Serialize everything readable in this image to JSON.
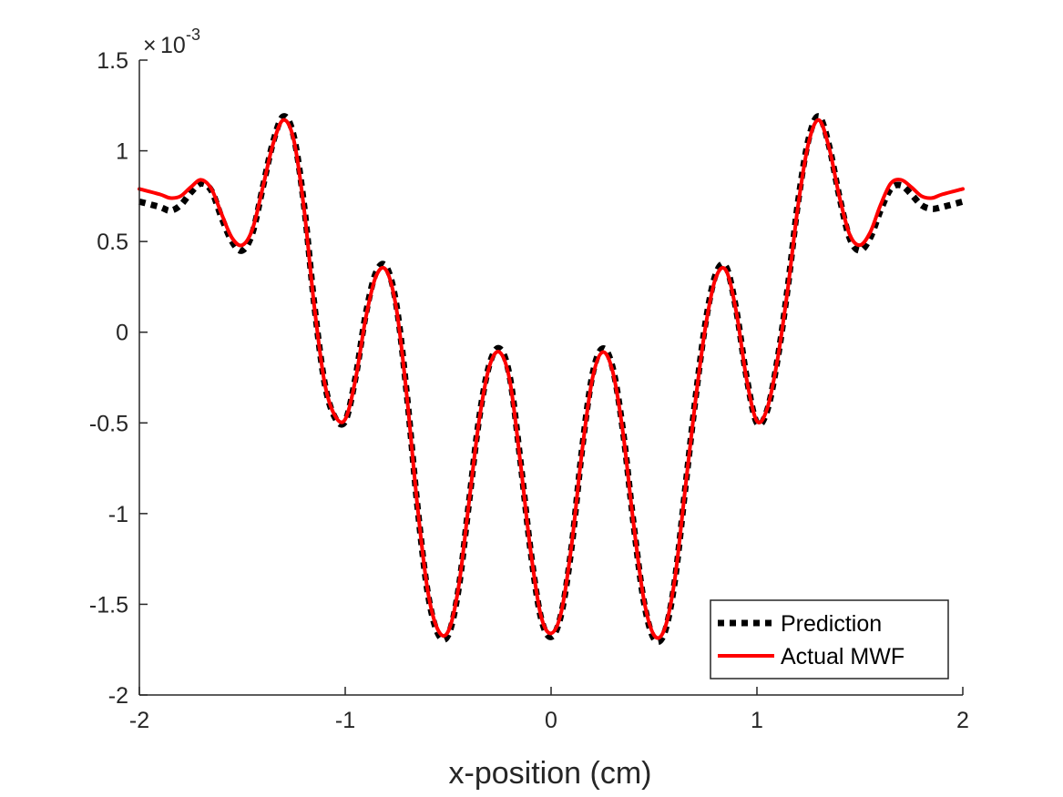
{
  "chart_data": {
    "type": "line",
    "title": "",
    "xlabel": "x-position (cm)",
    "ylabel": "",
    "xlim": [
      -2,
      2
    ],
    "ylim": [
      -2,
      1.5
    ],
    "y_multiplier_label": "10",
    "y_multiplier_exponent": "-3",
    "xticks": [
      -2,
      -1,
      0,
      1,
      2
    ],
    "xtick_labels": [
      "-2",
      "-1",
      "0",
      "1",
      "2"
    ],
    "yticks": [
      -2,
      -1.5,
      -1,
      -0.5,
      0,
      0.5,
      1,
      1.5
    ],
    "ytick_labels": [
      "-2",
      "-1.5",
      "-1",
      "-0.5",
      "0",
      "0.5",
      "1",
      "1.5"
    ],
    "grid": false,
    "legend_position": "bottom-right",
    "series": [
      {
        "name": "Prediction",
        "color": "#000000",
        "style": "dotted",
        "x": [
          -2,
          -1.9,
          -1.85,
          -1.8,
          -1.75,
          -1.7,
          -1.65,
          -1.6,
          -1.55,
          -1.5,
          -1.45,
          -1.4,
          -1.35,
          -1.3,
          -1.25,
          -1.2,
          -1.15,
          -1.1,
          -1.05,
          -1.0,
          -0.95,
          -0.9,
          -0.85,
          -0.8,
          -0.75,
          -0.7,
          -0.65,
          -0.6,
          -0.55,
          -0.5,
          -0.45,
          -0.4,
          -0.35,
          -0.3,
          -0.25,
          -0.2,
          -0.15,
          -0.1,
          -0.05,
          0,
          0.05,
          0.1,
          0.15,
          0.2,
          0.25,
          0.3,
          0.35,
          0.4,
          0.45,
          0.5,
          0.55,
          0.6,
          0.65,
          0.7,
          0.75,
          0.8,
          0.85,
          0.9,
          0.95,
          1.0,
          1.05,
          1.1,
          1.15,
          1.2,
          1.25,
          1.3,
          1.35,
          1.4,
          1.45,
          1.5,
          1.55,
          1.6,
          1.65,
          1.7,
          1.75,
          1.8,
          1.85,
          1.9,
          2
        ],
        "y": [
          0.72,
          0.69,
          0.67,
          0.7,
          0.77,
          0.82,
          0.78,
          0.63,
          0.5,
          0.45,
          0.55,
          0.8,
          1.05,
          1.19,
          1.08,
          0.7,
          0.15,
          -0.28,
          -0.47,
          -0.49,
          -0.25,
          0.1,
          0.33,
          0.36,
          0.14,
          -0.35,
          -0.95,
          -1.43,
          -1.66,
          -1.67,
          -1.42,
          -0.95,
          -0.48,
          -0.18,
          -0.09,
          -0.25,
          -0.7,
          -1.2,
          -1.57,
          -1.68,
          -1.55,
          -1.18,
          -0.65,
          -0.24,
          -0.09,
          -0.2,
          -0.55,
          -1.05,
          -1.48,
          -1.69,
          -1.66,
          -1.38,
          -0.88,
          -0.38,
          0.05,
          0.32,
          0.36,
          0.12,
          -0.25,
          -0.5,
          -0.43,
          -0.15,
          0.25,
          0.72,
          1.06,
          1.19,
          1.03,
          0.75,
          0.52,
          0.45,
          0.52,
          0.67,
          0.79,
          0.81,
          0.76,
          0.7,
          0.68,
          0.69,
          0.72
        ]
      },
      {
        "name": "Actual MWF",
        "color": "#ff0000",
        "style": "solid",
        "x": [
          -2,
          -1.9,
          -1.85,
          -1.8,
          -1.75,
          -1.7,
          -1.65,
          -1.6,
          -1.55,
          -1.5,
          -1.45,
          -1.4,
          -1.35,
          -1.3,
          -1.25,
          -1.2,
          -1.15,
          -1.1,
          -1.05,
          -1.0,
          -0.95,
          -0.9,
          -0.85,
          -0.8,
          -0.75,
          -0.7,
          -0.65,
          -0.6,
          -0.55,
          -0.5,
          -0.45,
          -0.4,
          -0.35,
          -0.3,
          -0.25,
          -0.2,
          -0.15,
          -0.1,
          -0.05,
          0,
          0.05,
          0.1,
          0.15,
          0.2,
          0.25,
          0.3,
          0.35,
          0.4,
          0.45,
          0.5,
          0.55,
          0.6,
          0.65,
          0.7,
          0.75,
          0.8,
          0.85,
          0.9,
          0.95,
          1.0,
          1.05,
          1.1,
          1.15,
          1.2,
          1.25,
          1.3,
          1.35,
          1.4,
          1.45,
          1.5,
          1.55,
          1.6,
          1.65,
          1.7,
          1.75,
          1.8,
          1.85,
          1.9,
          2
        ],
        "y": [
          0.79,
          0.76,
          0.74,
          0.75,
          0.8,
          0.84,
          0.79,
          0.65,
          0.52,
          0.48,
          0.57,
          0.8,
          1.04,
          1.17,
          1.06,
          0.68,
          0.14,
          -0.28,
          -0.46,
          -0.48,
          -0.26,
          0.08,
          0.31,
          0.34,
          0.12,
          -0.36,
          -0.95,
          -1.42,
          -1.64,
          -1.65,
          -1.41,
          -0.95,
          -0.49,
          -0.19,
          -0.11,
          -0.27,
          -0.71,
          -1.2,
          -1.56,
          -1.66,
          -1.54,
          -1.17,
          -0.66,
          -0.26,
          -0.11,
          -0.22,
          -0.56,
          -1.05,
          -1.47,
          -1.67,
          -1.64,
          -1.37,
          -0.88,
          -0.39,
          0.03,
          0.3,
          0.34,
          0.11,
          -0.26,
          -0.49,
          -0.42,
          -0.15,
          0.24,
          0.7,
          1.04,
          1.17,
          1.02,
          0.75,
          0.54,
          0.48,
          0.55,
          0.7,
          0.82,
          0.84,
          0.8,
          0.75,
          0.74,
          0.76,
          0.79
        ]
      }
    ]
  }
}
